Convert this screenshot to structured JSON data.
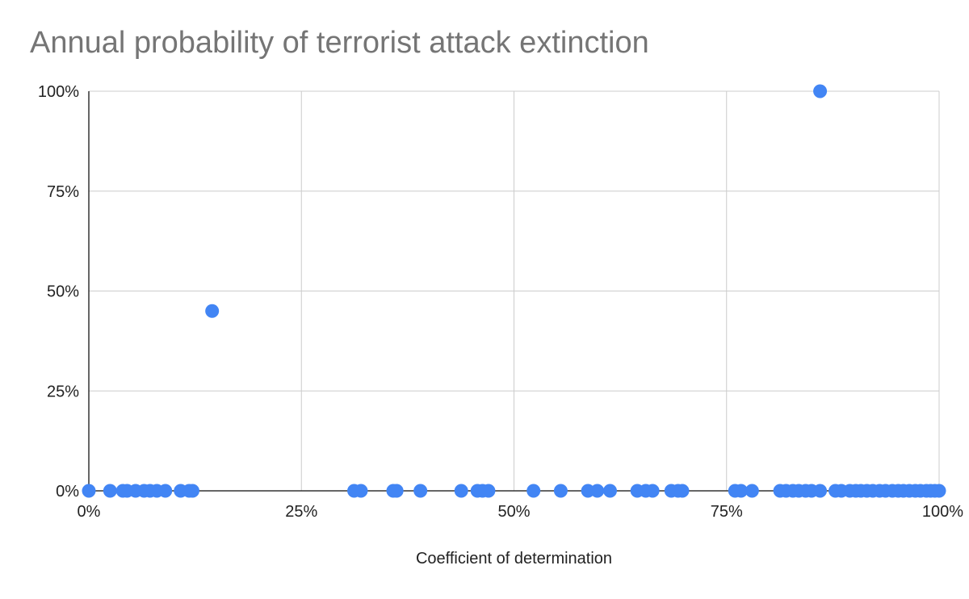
{
  "chart_data": {
    "type": "scatter",
    "title": "Annual probability of terrorist attack extinction",
    "xlabel": "Coefficient of determination",
    "ylabel": "",
    "xlim": [
      0,
      1
    ],
    "ylim": [
      0,
      1
    ],
    "x_ticks": [
      "0%",
      "25%",
      "50%",
      "75%",
      "100%"
    ],
    "y_ticks": [
      "0%",
      "25%",
      "50%",
      "75%",
      "100%"
    ],
    "grid": true,
    "legend": "none",
    "color": "#4285f4",
    "points": [
      {
        "x": 0.0,
        "y": 0
      },
      {
        "x": 0.025,
        "y": 0
      },
      {
        "x": 0.04,
        "y": 0
      },
      {
        "x": 0.045,
        "y": 0
      },
      {
        "x": 0.055,
        "y": 0
      },
      {
        "x": 0.065,
        "y": 0
      },
      {
        "x": 0.072,
        "y": 0
      },
      {
        "x": 0.08,
        "y": 0
      },
      {
        "x": 0.09,
        "y": 0
      },
      {
        "x": 0.108,
        "y": 0
      },
      {
        "x": 0.118,
        "y": 0
      },
      {
        "x": 0.122,
        "y": 0
      },
      {
        "x": 0.145,
        "y": 0.45
      },
      {
        "x": 0.312,
        "y": 0
      },
      {
        "x": 0.32,
        "y": 0
      },
      {
        "x": 0.358,
        "y": 0
      },
      {
        "x": 0.362,
        "y": 0
      },
      {
        "x": 0.39,
        "y": 0
      },
      {
        "x": 0.438,
        "y": 0
      },
      {
        "x": 0.457,
        "y": 0
      },
      {
        "x": 0.463,
        "y": 0
      },
      {
        "x": 0.47,
        "y": 0
      },
      {
        "x": 0.523,
        "y": 0
      },
      {
        "x": 0.555,
        "y": 0
      },
      {
        "x": 0.587,
        "y": 0
      },
      {
        "x": 0.598,
        "y": 0
      },
      {
        "x": 0.613,
        "y": 0
      },
      {
        "x": 0.645,
        "y": 0
      },
      {
        "x": 0.655,
        "y": 0
      },
      {
        "x": 0.663,
        "y": 0
      },
      {
        "x": 0.685,
        "y": 0
      },
      {
        "x": 0.693,
        "y": 0
      },
      {
        "x": 0.698,
        "y": 0
      },
      {
        "x": 0.76,
        "y": 0
      },
      {
        "x": 0.767,
        "y": 0
      },
      {
        "x": 0.78,
        "y": 0
      },
      {
        "x": 0.813,
        "y": 0
      },
      {
        "x": 0.82,
        "y": 0
      },
      {
        "x": 0.828,
        "y": 0
      },
      {
        "x": 0.835,
        "y": 0
      },
      {
        "x": 0.843,
        "y": 0
      },
      {
        "x": 0.85,
        "y": 0
      },
      {
        "x": 0.86,
        "y": 1.0
      },
      {
        "x": 0.86,
        "y": 0
      },
      {
        "x": 0.878,
        "y": 0
      },
      {
        "x": 0.885,
        "y": 0
      },
      {
        "x": 0.895,
        "y": 0
      },
      {
        "x": 0.902,
        "y": 0
      },
      {
        "x": 0.908,
        "y": 0
      },
      {
        "x": 0.915,
        "y": 0
      },
      {
        "x": 0.922,
        "y": 0
      },
      {
        "x": 0.93,
        "y": 0
      },
      {
        "x": 0.937,
        "y": 0
      },
      {
        "x": 0.945,
        "y": 0
      },
      {
        "x": 0.952,
        "y": 0
      },
      {
        "x": 0.958,
        "y": 0
      },
      {
        "x": 0.965,
        "y": 0
      },
      {
        "x": 0.972,
        "y": 0
      },
      {
        "x": 0.978,
        "y": 0
      },
      {
        "x": 0.985,
        "y": 0
      },
      {
        "x": 0.99,
        "y": 0
      },
      {
        "x": 0.995,
        "y": 0
      },
      {
        "x": 1.0,
        "y": 0
      }
    ]
  }
}
